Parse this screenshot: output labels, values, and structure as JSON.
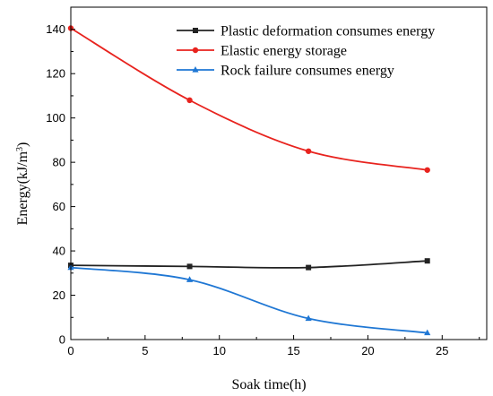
{
  "chart_data": {
    "type": "line",
    "xlabel": "Soak time(h)",
    "ylabel_main": "Energy(kJ/m",
    "ylabel_sup": "3",
    "ylabel_end": ")",
    "xlim": [
      0,
      28
    ],
    "ylim": [
      0,
      150
    ],
    "xticks": [
      0,
      5,
      10,
      15,
      20,
      25
    ],
    "yticks": [
      0,
      20,
      40,
      60,
      80,
      100,
      120,
      140
    ],
    "grid": false,
    "legend_position": "top-right",
    "x": [
      0,
      8,
      16,
      24
    ],
    "series": [
      {
        "name": "Plastic deformation consumes energy",
        "values": [
          33.5,
          33,
          32.5,
          35.5
        ],
        "color": "#222222",
        "marker": "square"
      },
      {
        "name": "Elastic energy storage",
        "values": [
          140.5,
          108,
          85,
          76.5
        ],
        "color": "#e8231e",
        "marker": "circle"
      },
      {
        "name": "Rock failure consumes energy",
        "values": [
          32.5,
          27,
          9.5,
          3
        ],
        "color": "#1f77d4",
        "marker": "triangle"
      }
    ]
  }
}
